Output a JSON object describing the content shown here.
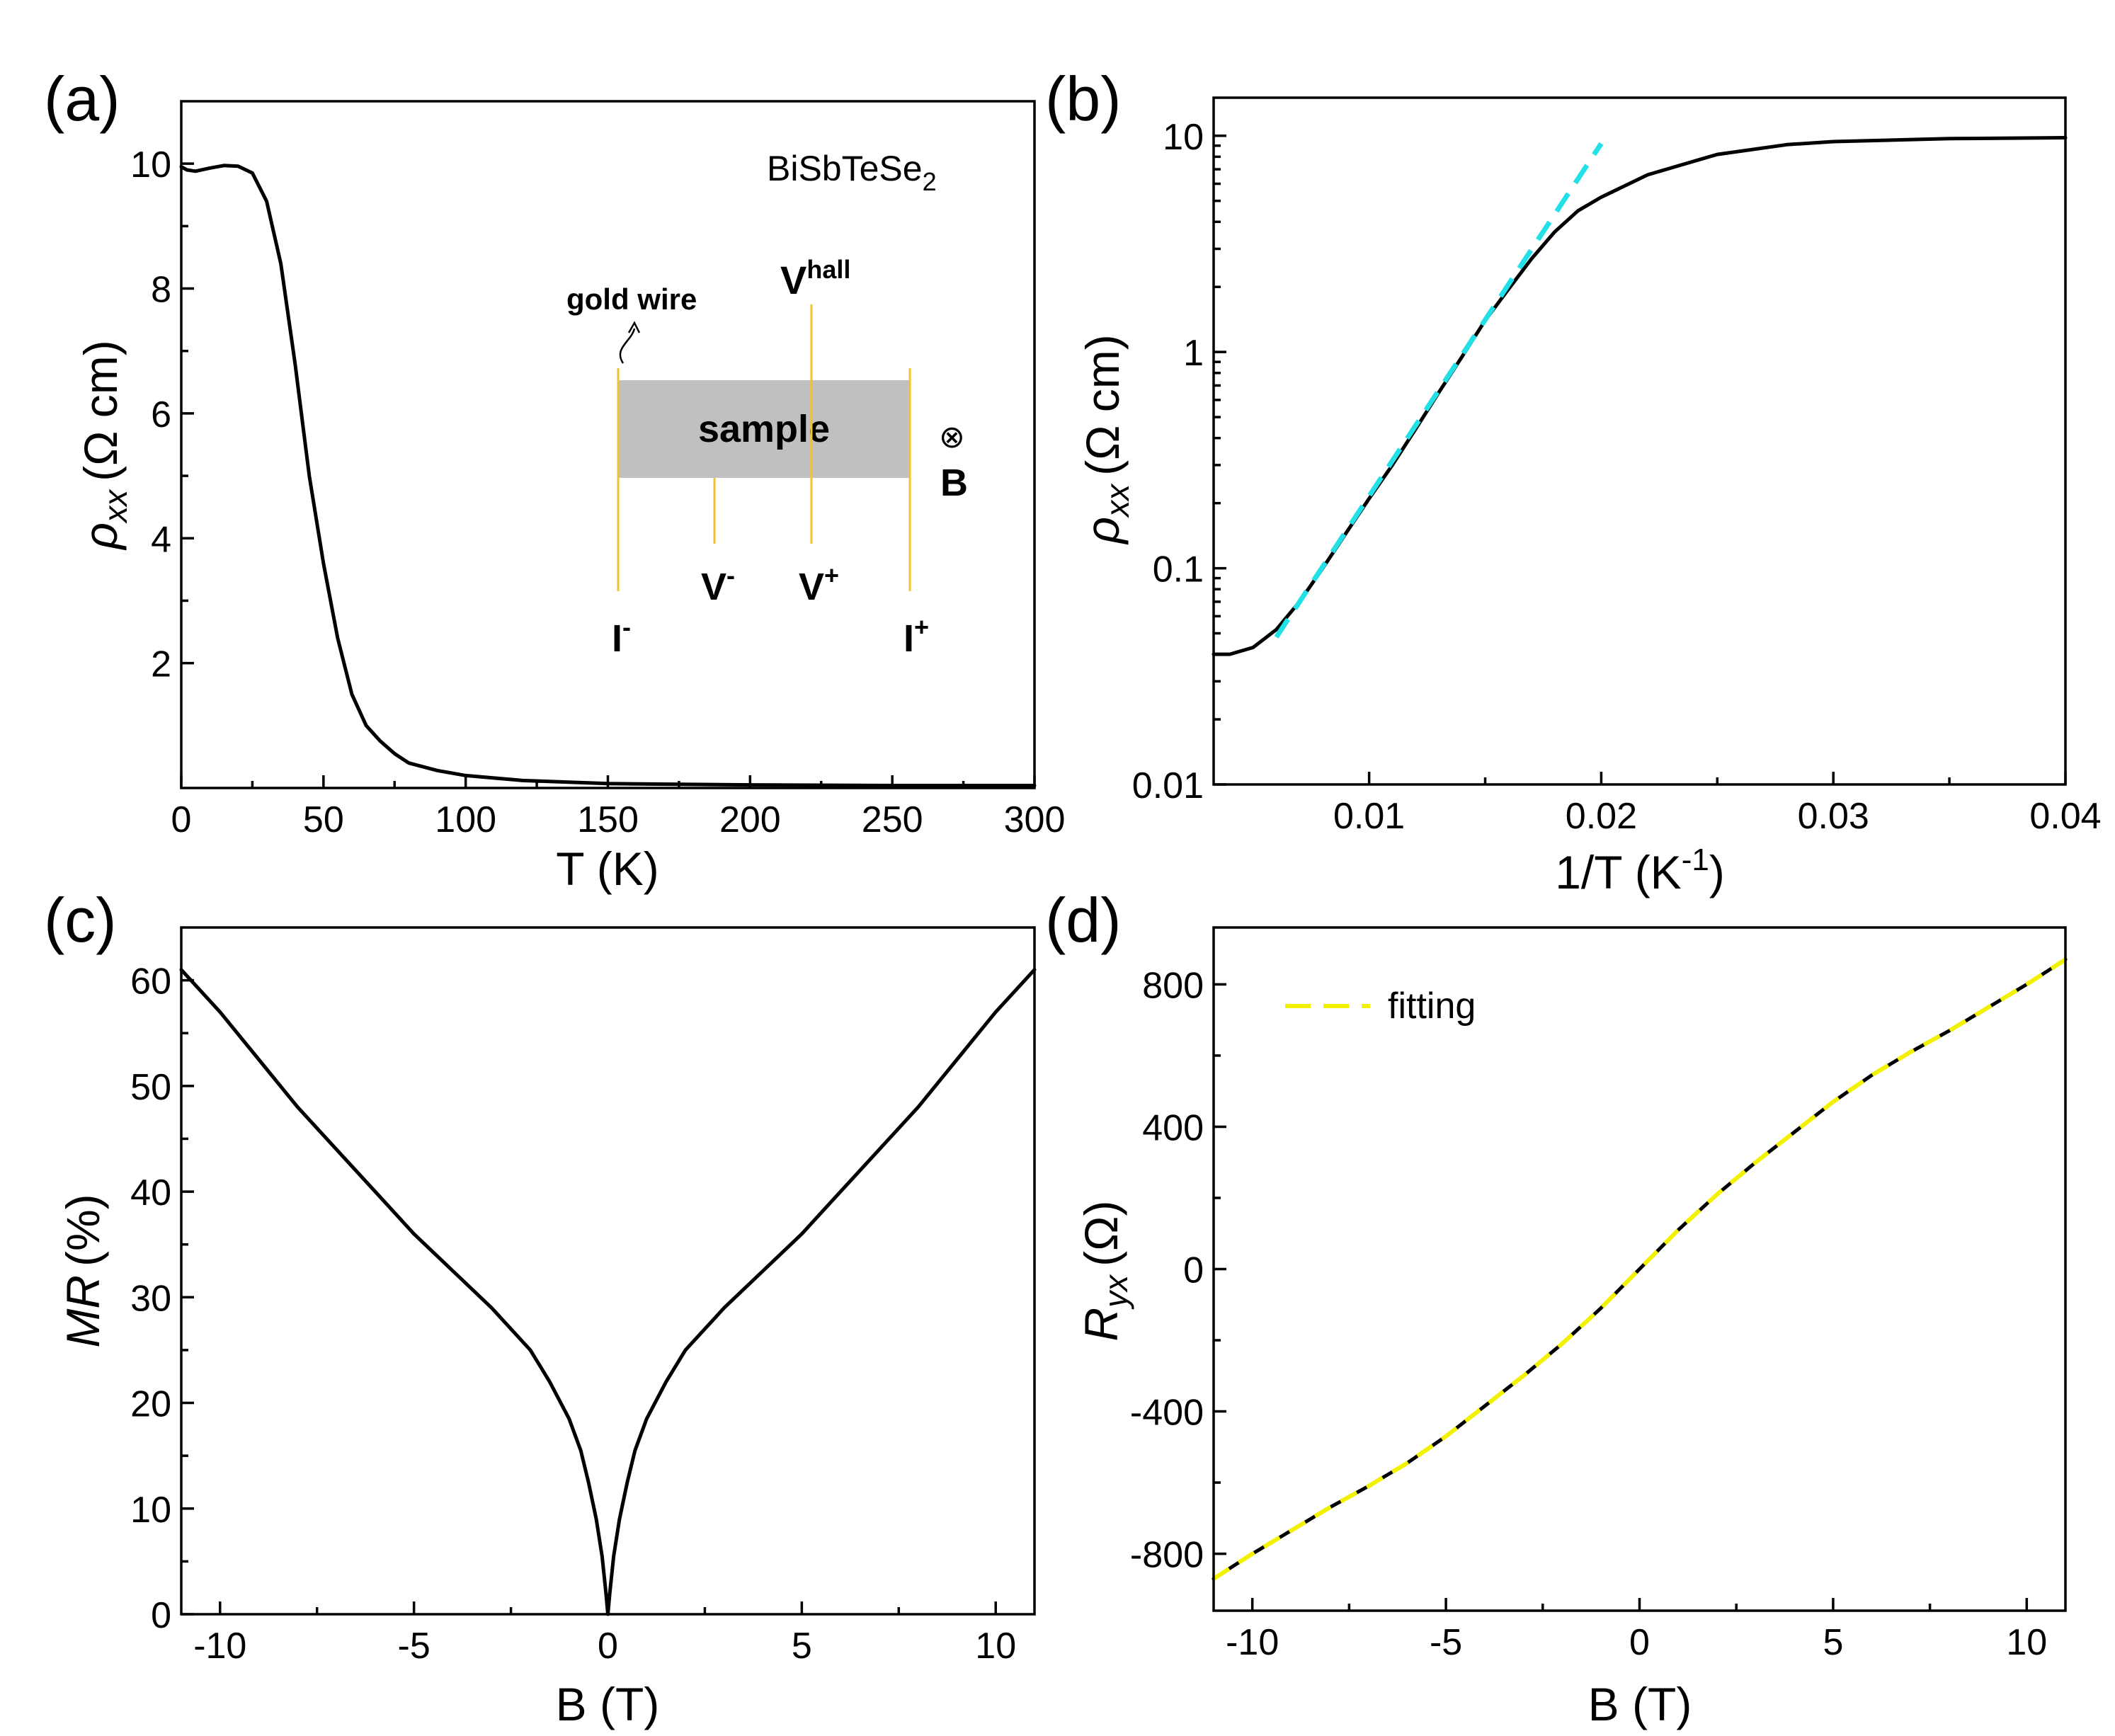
{
  "colors": {
    "curve": "#000000",
    "fit_b": "#22e0e8",
    "fit_d": "#f2f200",
    "wire": "#f2c230",
    "sample_fill": "#c0c0c0"
  },
  "chart_data": [
    {
      "panel": "(a)",
      "type": "line",
      "xlabel": "T (K)",
      "ylabel_main": "ρ",
      "ylabel_sub": "xx",
      "ylabel_unit": "(Ω cm)",
      "xlim": [
        0,
        300
      ],
      "ylim": [
        0,
        11
      ],
      "xticks": [
        0,
        50,
        100,
        150,
        200,
        250,
        300
      ],
      "yticks": [
        2,
        4,
        6,
        8,
        10
      ],
      "series": [
        {
          "name": "rho_xx",
          "x": [
            0,
            2,
            5,
            10,
            15,
            20,
            25,
            30,
            35,
            40,
            45,
            50,
            55,
            60,
            65,
            70,
            75,
            80,
            90,
            100,
            120,
            150,
            200,
            250,
            300
          ],
          "y": [
            9.95,
            9.9,
            9.88,
            9.93,
            9.97,
            9.96,
            9.85,
            9.4,
            8.4,
            6.8,
            5.0,
            3.6,
            2.4,
            1.5,
            1.0,
            0.75,
            0.55,
            0.4,
            0.28,
            0.2,
            0.12,
            0.07,
            0.05,
            0.04,
            0.04
          ]
        }
      ],
      "label": "BiSbTeSe",
      "label_sub": "2",
      "inset": {
        "sample_label": "sample",
        "gold_wire_label": "gold wire",
        "vhall_label": "V",
        "vhall_sup": "hall",
        "vminus_label": "V",
        "vminus_sup": "-",
        "vplus_label": "V",
        "vplus_sup": "+",
        "iminus_label": "I",
        "iminus_sup": "-",
        "iplus_label": "I",
        "iplus_sup": "+",
        "b_symbol": "⊗",
        "b_label": "B"
      }
    },
    {
      "panel": "(b)",
      "type": "line",
      "yscale": "log",
      "xlabel": "1/T (K",
      "xlabel_sup": "-1",
      "xlabel_end": ")",
      "ylabel_main": "ρ",
      "ylabel_sub": "xx",
      "ylabel_unit": "(Ω cm)",
      "xlim": [
        0.0033,
        0.04
      ],
      "ylim": [
        0.01,
        15
      ],
      "xticks": [
        0.01,
        0.02,
        0.03,
        0.04
      ],
      "xticklabels": [
        "0.01",
        "0.02",
        "0.03",
        "0.04"
      ],
      "yticks": [
        0.01,
        0.1,
        1,
        10
      ],
      "yticklabels": [
        "0.01",
        "0.1",
        "1",
        "10"
      ],
      "series": [
        {
          "name": "rho_xx",
          "x": [
            0.0033,
            0.004,
            0.005,
            0.006,
            0.007,
            0.008,
            0.009,
            0.01,
            0.011,
            0.012,
            0.013,
            0.014,
            0.015,
            0.016,
            0.017,
            0.018,
            0.019,
            0.02,
            0.022,
            0.025,
            0.028,
            0.03,
            0.035,
            0.04
          ],
          "y": [
            0.04,
            0.04,
            0.043,
            0.052,
            0.07,
            0.1,
            0.145,
            0.21,
            0.3,
            0.44,
            0.65,
            0.95,
            1.4,
            1.95,
            2.7,
            3.6,
            4.5,
            5.2,
            6.6,
            8.2,
            9.1,
            9.4,
            9.7,
            9.8
          ]
        },
        {
          "name": "fit",
          "style": "dashed",
          "x": [
            0.006,
            0.02
          ],
          "y": [
            0.048,
            9.2
          ]
        }
      ]
    },
    {
      "panel": "(c)",
      "type": "line",
      "xlabel": "B (T)",
      "ylabel_main": "MR",
      "ylabel_unit": "(%)",
      "xlim": [
        -11,
        11
      ],
      "ylim": [
        0,
        65
      ],
      "xticks": [
        -10,
        -5,
        0,
        5,
        10
      ],
      "xticklabels": [
        "-10",
        "-5",
        "0",
        "5",
        "10"
      ],
      "yticks": [
        0,
        10,
        20,
        30,
        40,
        50,
        60
      ],
      "series": [
        {
          "name": "MR",
          "x": [
            -11,
            -10,
            -9,
            -8,
            -7,
            -6,
            -5,
            -4,
            -3,
            -2,
            -1.5,
            -1,
            -0.7,
            -0.5,
            -0.3,
            -0.15,
            -0.05,
            0,
            0.05,
            0.15,
            0.3,
            0.5,
            0.7,
            1,
            1.5,
            2,
            3,
            4,
            5,
            6,
            7,
            8,
            9,
            10,
            11
          ],
          "y": [
            61,
            57,
            52.5,
            48,
            44,
            40,
            36,
            32.5,
            29,
            25,
            22,
            18.5,
            15.5,
            12.5,
            9,
            5.5,
            2,
            0,
            2,
            5.5,
            9,
            12.5,
            15.5,
            18.5,
            22,
            25,
            29,
            32.5,
            36,
            40,
            44,
            48,
            52.5,
            57,
            61
          ]
        }
      ]
    },
    {
      "panel": "(d)",
      "type": "line",
      "xlabel": "B (T)",
      "ylabel_main": "R",
      "ylabel_sub": "yx",
      "ylabel_unit": "(Ω)",
      "xlim": [
        -11,
        11
      ],
      "ylim": [
        -960,
        960
      ],
      "xticks": [
        -10,
        -5,
        0,
        5,
        10
      ],
      "xticklabels": [
        "-10",
        "-5",
        "0",
        "5",
        "10"
      ],
      "yticks": [
        -800,
        -400,
        0,
        400,
        800
      ],
      "yticklabels": [
        "-800",
        "-400",
        "0",
        "400",
        "800"
      ],
      "legend": "fitting",
      "series": [
        {
          "name": "R_yx",
          "x": [
            -11,
            -10,
            -9,
            -8,
            -7,
            -6,
            -5,
            -4,
            -3,
            -2,
            -1,
            0,
            1,
            2,
            3,
            4,
            5,
            6,
            7,
            8,
            9,
            10,
            11
          ],
          "y": [
            -870,
            -800,
            -735,
            -670,
            -610,
            -545,
            -470,
            -385,
            -300,
            -210,
            -110,
            0,
            110,
            210,
            300,
            385,
            470,
            545,
            610,
            670,
            735,
            800,
            870
          ]
        },
        {
          "name": "fitting",
          "style": "dashed",
          "x": [
            -11,
            -10,
            -9,
            -8,
            -7,
            -6,
            -5,
            -4,
            -3,
            -2,
            -1,
            0,
            1,
            2,
            3,
            4,
            5,
            6,
            7,
            8,
            9,
            10,
            11
          ],
          "y": [
            -870,
            -800,
            -735,
            -670,
            -610,
            -545,
            -470,
            -385,
            -300,
            -210,
            -110,
            0,
            110,
            210,
            300,
            385,
            470,
            545,
            610,
            670,
            735,
            800,
            870
          ]
        }
      ]
    }
  ]
}
